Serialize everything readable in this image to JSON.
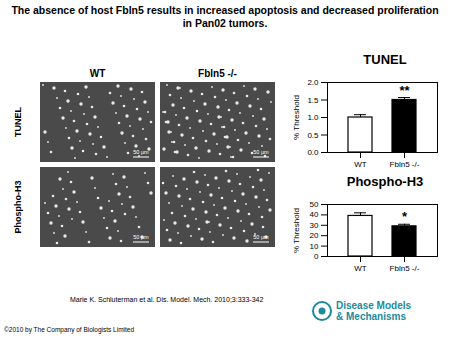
{
  "title": "The absence of host Fbln5 results in increased apoptosis and decreased proliferation in Pan02 tumors.",
  "columns": [
    "WT",
    "Fbln5 -/-"
  ],
  "rows": [
    "TUNEL",
    "Phospho-H3"
  ],
  "scale_bar": "50 μm",
  "citation": "Marie K. Schluterman et al. Dis. Model. Mech. 2010;3:333-342",
  "journal": [
    "Disease Models",
    "& Mechanisms"
  ],
  "copyright": "©2010 by The Company of Biologists Limited",
  "chart_data": [
    {
      "type": "bar",
      "title": "TUNEL",
      "y_label": "% Threshold",
      "categories": [
        "WT",
        "Fbln5 -/-"
      ],
      "values": [
        1.0,
        1.5
      ],
      "errors": [
        0.08,
        0.07
      ],
      "colors": [
        "#ffffff",
        "#000000"
      ],
      "ylim": [
        0,
        2
      ],
      "yticks": [
        {
          "value": 0,
          "label": "0.0"
        },
        {
          "value": 0.5,
          "label": "0.5"
        },
        {
          "value": 1,
          "label": "1.0"
        },
        {
          "value": 1.5,
          "label": "1.5"
        },
        {
          "value": 2,
          "label": "2.0"
        }
      ],
      "annotations": [
        {
          "category": "Fbln5 -/-",
          "text": "**"
        }
      ]
    },
    {
      "type": "bar",
      "title": "Phospho-H3",
      "y_label": "% Threshold",
      "categories": [
        "WT",
        "Fbln5 -/-"
      ],
      "values": [
        39,
        29
      ],
      "errors": [
        3,
        2
      ],
      "colors": [
        "#ffffff",
        "#000000"
      ],
      "ylim": [
        0,
        50
      ],
      "yticks": [
        0,
        10,
        20,
        30,
        40,
        50
      ],
      "annotations": [
        {
          "category": "Fbln5 -/-",
          "text": "*"
        }
      ]
    }
  ]
}
